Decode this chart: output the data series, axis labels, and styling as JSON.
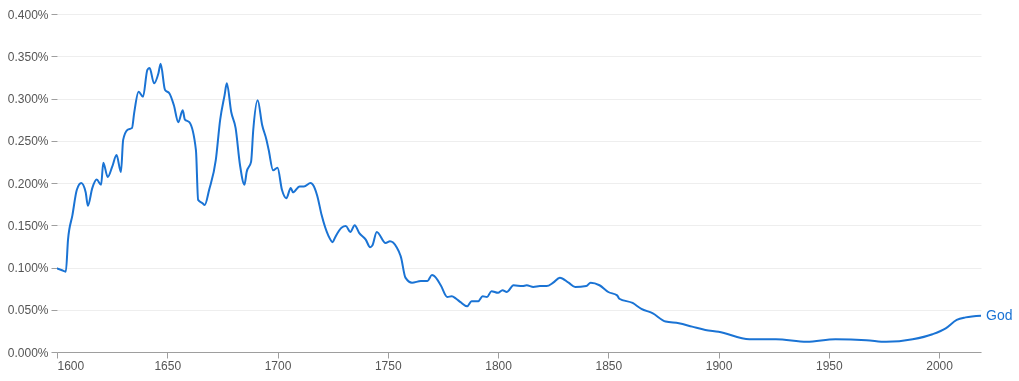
{
  "chart_data": {
    "type": "line",
    "xlim": [
      1600,
      2019
    ],
    "ylim": [
      0,
      0.4
    ],
    "xticks": [
      1600,
      1650,
      1700,
      1750,
      1800,
      1850,
      1900,
      1950,
      2000
    ],
    "yticks": [
      {
        "value": 0,
        "label": "0.000%"
      },
      {
        "value": 0.05,
        "label": "0.050%"
      },
      {
        "value": 0.1,
        "label": "0.100%"
      },
      {
        "value": 0.15,
        "label": "0.150%"
      },
      {
        "value": 0.2,
        "label": "0.200%"
      },
      {
        "value": 0.25,
        "label": "0.250%"
      },
      {
        "value": 0.3,
        "label": "0.300%"
      },
      {
        "value": 0.35,
        "label": "0.350%"
      },
      {
        "value": 0.4,
        "label": "0.400%"
      }
    ],
    "grid": "y",
    "x": [
      1600,
      1602,
      1604,
      1605,
      1607,
      1609,
      1611,
      1613,
      1614,
      1616,
      1618,
      1620,
      1621,
      1623,
      1625,
      1627,
      1629,
      1630,
      1632,
      1634,
      1635,
      1637,
      1639,
      1641,
      1642,
      1644,
      1646,
      1647,
      1649,
      1651,
      1653,
      1655,
      1657,
      1658,
      1660,
      1663,
      1664,
      1666,
      1667,
      1669,
      1672,
      1674,
      1676,
      1677,
      1679,
      1681,
      1683,
      1685,
      1686,
      1688,
      1689,
      1691,
      1693,
      1695,
      1696,
      1698,
      1700,
      1702,
      1704,
      1706,
      1707,
      1710,
      1712,
      1715,
      1716,
      1718,
      1720,
      1723,
      1725,
      1726,
      1729,
      1731,
      1733,
      1735,
      1737,
      1740,
      1742,
      1743,
      1745,
      1749,
      1751,
      1754,
      1756,
      1758,
      1761,
      1765,
      1768,
      1770,
      1771,
      1774,
      1777,
      1779,
      1781,
      1783,
      1786,
      1788,
      1791,
      1793,
      1795,
      1797,
      1800,
      1802,
      1804,
      1807,
      1811,
      1813,
      1816,
      1819,
      1822,
      1825,
      1828,
      1832,
      1835,
      1840,
      1842,
      1846,
      1850,
      1854,
      1855,
      1861,
      1865,
      1870,
      1876,
      1882,
      1888,
      1894,
      1900,
      1914,
      1926,
      1940,
      1953,
      1967,
      1976,
      1988,
      1997,
      2003,
      2008,
      2012,
      2019
    ],
    "series": [
      {
        "name": "God",
        "color": "#1a73d4",
        "values": [
          0.099,
          0.097,
          0.095,
          0.133,
          0.162,
          0.192,
          0.2,
          0.189,
          0.173,
          0.194,
          0.204,
          0.198,
          0.224,
          0.207,
          0.219,
          0.233,
          0.213,
          0.251,
          0.263,
          0.265,
          0.283,
          0.308,
          0.302,
          0.334,
          0.336,
          0.318,
          0.33,
          0.341,
          0.31,
          0.306,
          0.292,
          0.272,
          0.286,
          0.275,
          0.272,
          0.239,
          0.18,
          0.176,
          0.174,
          0.192,
          0.227,
          0.275,
          0.304,
          0.318,
          0.284,
          0.265,
          0.221,
          0.198,
          0.213,
          0.225,
          0.263,
          0.298,
          0.269,
          0.251,
          0.239,
          0.215,
          0.218,
          0.192,
          0.182,
          0.194,
          0.189,
          0.196,
          0.196,
          0.2,
          0.198,
          0.185,
          0.162,
          0.138,
          0.13,
          0.135,
          0.147,
          0.149,
          0.142,
          0.15,
          0.141,
          0.133,
          0.124,
          0.126,
          0.142,
          0.129,
          0.131,
          0.124,
          0.112,
          0.088,
          0.082,
          0.084,
          0.084,
          0.091,
          0.09,
          0.079,
          0.065,
          0.066,
          0.063,
          0.059,
          0.054,
          0.06,
          0.06,
          0.066,
          0.065,
          0.072,
          0.07,
          0.073,
          0.071,
          0.079,
          0.078,
          0.079,
          0.077,
          0.078,
          0.078,
          0.082,
          0.088,
          0.082,
          0.077,
          0.078,
          0.082,
          0.079,
          0.071,
          0.067,
          0.063,
          0.058,
          0.051,
          0.046,
          0.036,
          0.034,
          0.03,
          0.026,
          0.024,
          0.015,
          0.015,
          0.012,
          0.015,
          0.014,
          0.012,
          0.015,
          0.021,
          0.028,
          0.038,
          0.041,
          0.043
        ]
      }
    ]
  }
}
